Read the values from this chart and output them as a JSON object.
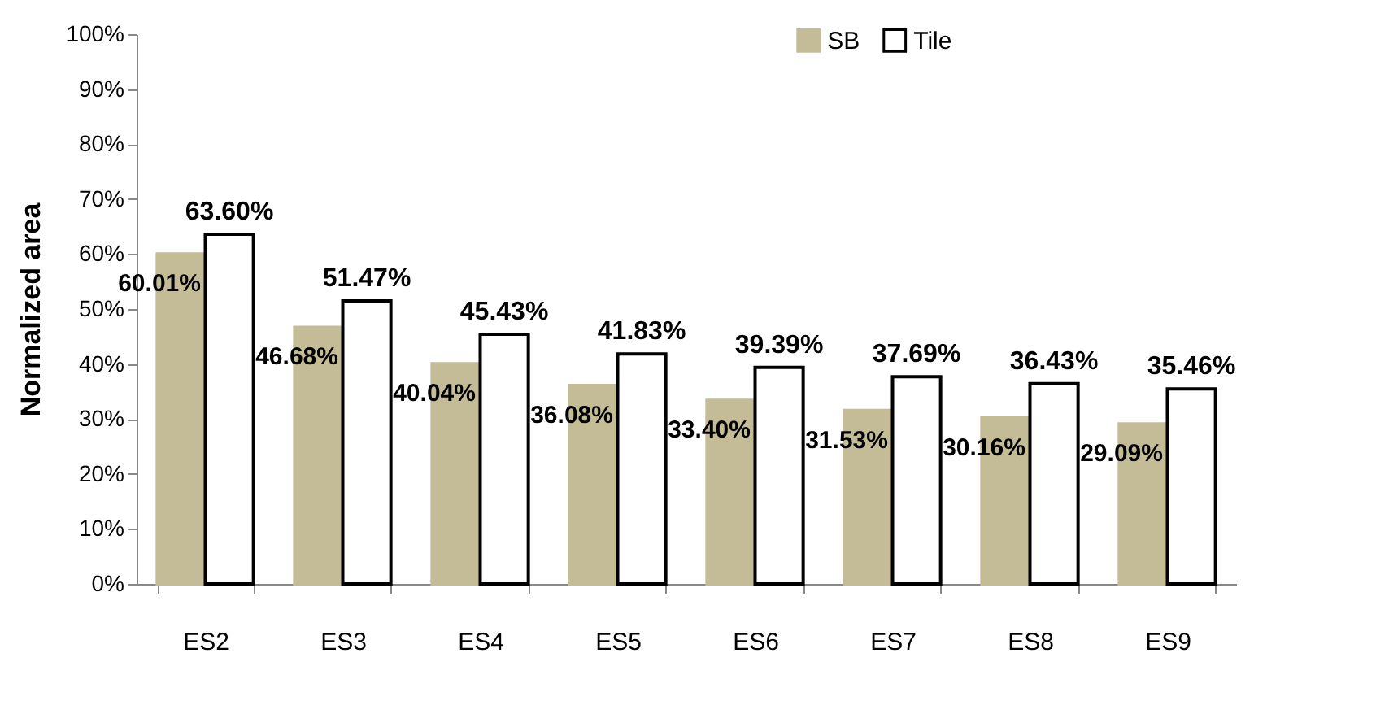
{
  "chart_data": {
    "type": "bar",
    "ylabel": "Normalized area",
    "categories": [
      "ES2",
      "ES3",
      "ES4",
      "ES5",
      "ES6",
      "ES7",
      "ES8",
      "ES9"
    ],
    "series": [
      {
        "name": "SB",
        "color": "#c4bc96",
        "values": [
          60.01,
          46.68,
          40.04,
          36.08,
          33.4,
          31.53,
          30.16,
          29.09
        ],
        "value_labels": [
          "60.01%",
          "46.68%",
          "40.04%",
          "36.08%",
          "33.40%",
          "31.53%",
          "30.16%",
          "29.09%"
        ]
      },
      {
        "name": "Tile",
        "color": "#ffffff",
        "values": [
          63.6,
          51.47,
          45.43,
          41.83,
          39.39,
          37.69,
          36.43,
          35.46
        ],
        "value_labels": [
          "63.60%",
          "51.47%",
          "45.43%",
          "41.83%",
          "39.39%",
          "37.69%",
          "36.43%",
          "35.46%"
        ]
      }
    ],
    "ylim": [
      0,
      100
    ],
    "yticks": [
      {
        "value": 0,
        "label": "0%"
      },
      {
        "value": 10,
        "label": "10%"
      },
      {
        "value": 20,
        "label": "20%"
      },
      {
        "value": 30,
        "label": "30%"
      },
      {
        "value": 40,
        "label": "40%"
      },
      {
        "value": 50,
        "label": "50%"
      },
      {
        "value": 60,
        "label": "60%"
      },
      {
        "value": 70,
        "label": "70%"
      },
      {
        "value": 80,
        "label": "80%"
      },
      {
        "value": 90,
        "label": "90%"
      },
      {
        "value": 100,
        "label": "100%"
      }
    ],
    "grid": false,
    "legend": "top"
  }
}
